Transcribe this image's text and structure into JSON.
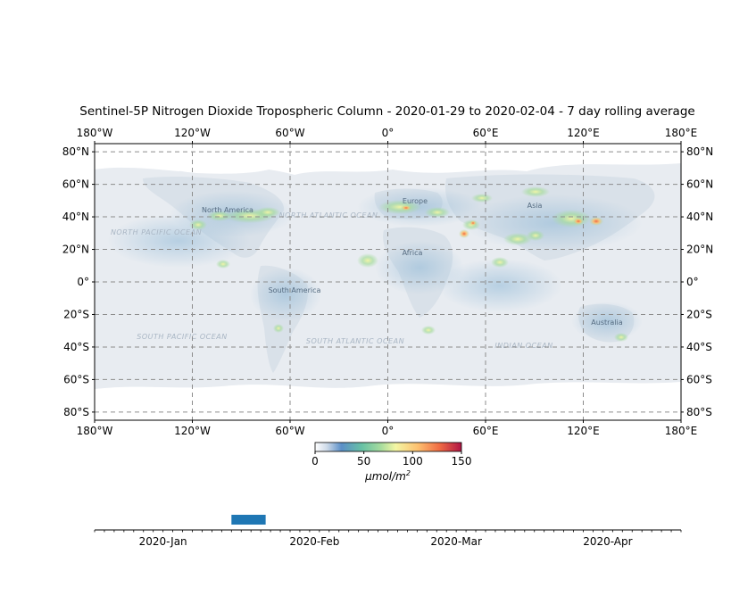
{
  "title": "Sentinel-5P Nitrogen Dioxide Tropospheric Column - 2020-01-29 to 2020-02-04 - 7 day rolling average",
  "map": {
    "lon_ticks": [
      "180°W",
      "120°W",
      "60°W",
      "0°",
      "60°E",
      "120°E",
      "180°E"
    ],
    "lat_ticks": [
      "80°N",
      "60°N",
      "40°N",
      "20°N",
      "0°",
      "20°S",
      "40°S",
      "60°S",
      "80°S"
    ],
    "lon_range": [
      -180,
      180
    ],
    "lat_range": [
      -85,
      85
    ],
    "gridlines": true,
    "continents": [
      "North America",
      "South America",
      "Europe",
      "Africa",
      "Asia",
      "Australia"
    ],
    "oceans": [
      "NORTH PACIFIC OCEAN",
      "SOUTH PACIFIC OCEAN",
      "NORTH ATLANTIC OCEAN",
      "SOUTH ATLANTIC OCEAN",
      "INDIAN OCEAN"
    ]
  },
  "colorbar": {
    "ticks": [
      "0",
      "50",
      "100",
      "150"
    ],
    "range": [
      0,
      150
    ],
    "unit_base": "μmol/m",
    "unit_exp": "2",
    "colormap": [
      "#ffffff",
      "#5b8fc8",
      "#67c1a4",
      "#a7dc9e",
      "#f3f6a4",
      "#fdc170",
      "#f06c44",
      "#b01445"
    ]
  },
  "timeline": {
    "labels": [
      "2020-Jan",
      "2020-Feb",
      "2020-Mar",
      "2020-Apr"
    ],
    "window": [
      "2020-01-29",
      "2020-02-04"
    ],
    "highlight_color": "#1f77b4"
  }
}
